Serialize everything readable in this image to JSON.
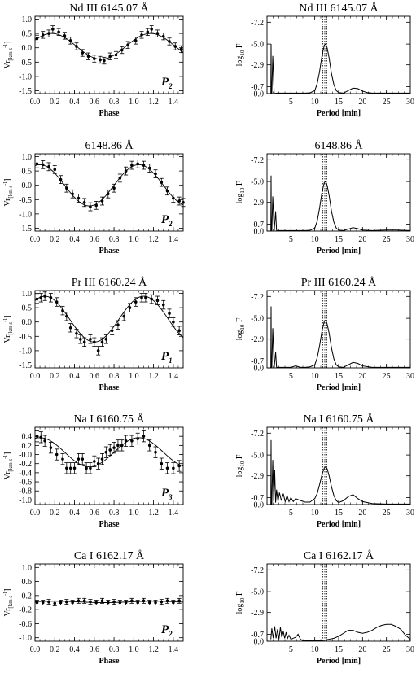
{
  "chart_data": [
    {
      "type": "scatter",
      "title": "Nd III 6145.07 Å",
      "xlabel": "Phase",
      "ylabel_main": "Vr",
      "ylabel_sub": "[km s",
      "ylabel_sup": "-1",
      "ylabel_end": "]",
      "xlim": [
        0,
        1.5
      ],
      "ylim": [
        -1.6,
        1.1
      ],
      "yticks": [
        "1.0",
        "0.5",
        "0.0",
        "-0.5",
        "-1.0",
        "-1.5"
      ],
      "ytick_values": [
        1.0,
        0.5,
        0.0,
        -0.5,
        -1.0,
        -1.5
      ],
      "xticks": [
        "0.0",
        "0.2",
        "0.4",
        "0.6",
        "0.8",
        "1.0",
        "1.2",
        "1.4"
      ],
      "xtick_values": [
        0,
        0.2,
        0.4,
        0.6,
        0.8,
        1.0,
        1.2,
        1.4
      ],
      "period_label": "P",
      "period_sub": "2",
      "fit": {
        "offset": 0.05,
        "amplitude": 0.45,
        "phase0": 0.17
      },
      "x": [
        0.02,
        0.08,
        0.14,
        0.18,
        0.24,
        0.3,
        0.36,
        0.42,
        0.48,
        0.54,
        0.6,
        0.66,
        0.7,
        0.76,
        0.82,
        0.88,
        0.94,
        1.02,
        1.08,
        1.14,
        1.18,
        1.24,
        1.3,
        1.36,
        1.42,
        1.48
      ],
      "y": [
        0.32,
        0.45,
        0.5,
        0.65,
        0.55,
        0.42,
        0.25,
        0.05,
        -0.18,
        -0.3,
        -0.38,
        -0.42,
        -0.45,
        -0.3,
        -0.25,
        -0.08,
        0.1,
        0.25,
        0.45,
        0.55,
        0.65,
        0.5,
        0.4,
        0.22,
        0.05,
        -0.05
      ],
      "err": 0.12
    },
    {
      "type": "line",
      "title": "Nd III 6145.07 Å",
      "xlabel": "Period [min]",
      "ylabel_main": "log",
      "ylabel_sub": "10",
      "ylabel_end": " F",
      "xlim": [
        0,
        30
      ],
      "ylim": [
        0,
        7.8
      ],
      "yticks": [
        "-7.2",
        "-5.0",
        "-2.9",
        "-0.7",
        "0.0"
      ],
      "ytick_values": [
        7.2,
        5.0,
        2.9,
        0.7,
        0.0
      ],
      "xticks": [
        "5",
        "10",
        "15",
        "20",
        "25",
        "30"
      ],
      "xtick_values": [
        5,
        10,
        15,
        20,
        25,
        30
      ],
      "period_markers": [
        11.7,
        12.1,
        12.5
      ],
      "x": [
        0.8,
        0.85,
        0.9,
        1.0,
        1.2,
        1.5,
        2.0,
        3.0,
        4.0,
        5.0,
        6.0,
        7.0,
        8.0,
        9.0,
        10.0,
        10.5,
        11.0,
        11.5,
        12.0,
        12.3,
        12.6,
        13.0,
        13.5,
        14.0,
        14.5,
        15.0,
        16.0,
        17.0,
        18.0,
        19.0,
        20.0,
        21.0,
        22.0,
        25.0,
        30.0
      ],
      "y": [
        0,
        5.0,
        0,
        0,
        3.8,
        0,
        0.05,
        0.05,
        0.05,
        0.05,
        0.05,
        0.05,
        0.05,
        0.08,
        0.3,
        1.0,
        2.2,
        3.8,
        4.9,
        5.0,
        4.6,
        3.6,
        2.0,
        0.9,
        0.3,
        0.1,
        0.05,
        0.3,
        0.55,
        0.5,
        0.25,
        0.1,
        0.05,
        0.05,
        0.05
      ]
    },
    {
      "type": "scatter",
      "title": "6148.86 Å",
      "xlabel": "Phase",
      "ylabel_main": "Vr",
      "ylabel_sub": "[km s",
      "ylabel_sup": "-1",
      "ylabel_end": "]",
      "xlim": [
        0,
        1.5
      ],
      "ylim": [
        -1.6,
        1.1
      ],
      "yticks": [
        "1.0",
        "0.5",
        "0.0",
        "-0.5",
        "-1.0",
        "-1.5"
      ],
      "ytick_values": [
        1.0,
        0.5,
        0.0,
        -0.5,
        -1.0,
        -1.5
      ],
      "xticks": [
        "0.0",
        "0.2",
        "0.4",
        "0.6",
        "0.8",
        "1.0",
        "1.2",
        "1.4"
      ],
      "xtick_values": [
        0,
        0.2,
        0.4,
        0.6,
        0.8,
        1.0,
        1.2,
        1.4
      ],
      "period_label": "P",
      "period_sub": "2",
      "fit": {
        "offset": 0.0,
        "amplitude": 0.72,
        "phase0": 0.05
      },
      "x": [
        0.02,
        0.08,
        0.14,
        0.2,
        0.26,
        0.32,
        0.38,
        0.44,
        0.5,
        0.56,
        0.62,
        0.68,
        0.74,
        0.8,
        0.86,
        0.92,
        0.98,
        1.04,
        1.1,
        1.16,
        1.22,
        1.28,
        1.34,
        1.4,
        1.46,
        1.5
      ],
      "y": [
        0.75,
        0.72,
        0.65,
        0.55,
        0.2,
        -0.1,
        -0.3,
        -0.45,
        -0.6,
        -0.75,
        -0.7,
        -0.55,
        -0.3,
        -0.1,
        0.25,
        0.5,
        0.7,
        0.75,
        0.7,
        0.6,
        0.4,
        0.1,
        -0.2,
        -0.45,
        -0.55,
        -0.6
      ],
      "err": 0.14
    },
    {
      "type": "line",
      "title": "6148.86 Å",
      "xlabel": "Period [min]",
      "ylabel_main": "log",
      "ylabel_sub": "10",
      "ylabel_end": " F",
      "xlim": [
        0,
        30
      ],
      "ylim": [
        0,
        7.8
      ],
      "yticks": [
        "-7.2",
        "-5.0",
        "-2.9",
        "-0.7",
        "0.0"
      ],
      "ytick_values": [
        7.2,
        5.0,
        2.9,
        0.7,
        0.0
      ],
      "xticks": [
        "5",
        "10",
        "15",
        "20",
        "25",
        "30"
      ],
      "xtick_values": [
        5,
        10,
        15,
        20,
        25,
        30
      ],
      "period_markers": [
        11.7,
        12.1,
        12.5
      ],
      "x": [
        0.8,
        0.85,
        0.9,
        1.0,
        1.2,
        1.5,
        1.8,
        2.0,
        3.0,
        4.0,
        5.0,
        6.0,
        7.0,
        8.0,
        9.0,
        10.0,
        10.5,
        11.0,
        11.5,
        12.0,
        12.3,
        12.6,
        13.0,
        13.5,
        14.0,
        14.5,
        15.0,
        16.0,
        17.0,
        18.0,
        19.0,
        20.0,
        22.0,
        25.0,
        27.0,
        30.0
      ],
      "y": [
        0,
        5.6,
        0,
        0,
        3.5,
        0,
        2.0,
        0.05,
        0.05,
        0.05,
        0.05,
        0.05,
        0.05,
        0.05,
        0.08,
        0.3,
        1.0,
        2.3,
        3.9,
        4.9,
        5.0,
        4.6,
        3.6,
        2.0,
        0.9,
        0.3,
        0.1,
        0.05,
        0.2,
        0.35,
        0.25,
        0.1,
        0.05,
        0.1,
        0.1,
        0.05
      ]
    },
    {
      "type": "scatter",
      "title": "Pr III 6160.24 Å",
      "xlabel": "Phase",
      "ylabel_main": "Vr",
      "ylabel_sub": "[km s",
      "ylabel_sup": "-1",
      "ylabel_end": "]",
      "xlim": [
        0,
        1.5
      ],
      "ylim": [
        -1.6,
        1.1
      ],
      "yticks": [
        "1.0",
        "0.5",
        "0.0",
        "-0.5",
        "-1.0",
        "-1.5"
      ],
      "ytick_values": [
        1.0,
        0.5,
        0.0,
        -0.5,
        -1.0,
        -1.5
      ],
      "xticks": [
        "0.0",
        "0.2",
        "0.4",
        "0.6",
        "0.8",
        "1.0",
        "1.2",
        "1.4"
      ],
      "xtick_values": [
        0,
        0.2,
        0.4,
        0.6,
        0.8,
        1.0,
        1.2,
        1.4
      ],
      "period_label": "P",
      "period_sub": "1",
      "fit": {
        "offset": 0.1,
        "amplitude": 0.8,
        "phase0": 0.1
      },
      "x": [
        0.02,
        0.06,
        0.1,
        0.16,
        0.22,
        0.28,
        0.32,
        0.36,
        0.42,
        0.46,
        0.5,
        0.56,
        0.6,
        0.64,
        0.68,
        0.72,
        0.78,
        0.84,
        0.9,
        0.96,
        1.02,
        1.08,
        1.12,
        1.18,
        1.24,
        1.3,
        1.36,
        1.4,
        1.46
      ],
      "y": [
        0.8,
        0.85,
        0.9,
        0.85,
        0.7,
        0.4,
        0.2,
        -0.2,
        -0.4,
        -0.6,
        -0.7,
        -0.6,
        -0.7,
        -1.0,
        -0.7,
        -0.6,
        -0.3,
        -0.1,
        0.2,
        0.5,
        0.7,
        0.85,
        0.85,
        0.8,
        0.75,
        0.6,
        0.3,
        0.0,
        -0.3
      ],
      "err": 0.15
    },
    {
      "type": "line",
      "title": "Pr III 6160.24 Å",
      "xlabel": "Period [min]",
      "ylabel_main": "log",
      "ylabel_sub": "10",
      "ylabel_end": " F",
      "xlim": [
        0,
        30
      ],
      "ylim": [
        0,
        7.8
      ],
      "yticks": [
        "-7.2",
        "-5.0",
        "-2.9",
        "-0.7",
        "0.0"
      ],
      "ytick_values": [
        7.2,
        5.0,
        2.9,
        0.7,
        0.0
      ],
      "xticks": [
        "5",
        "10",
        "15",
        "20",
        "25",
        "30"
      ],
      "xtick_values": [
        5,
        10,
        15,
        20,
        25,
        30
      ],
      "period_markers": [
        11.7,
        12.1,
        12.5
      ],
      "x": [
        0.8,
        0.85,
        0.9,
        1.0,
        1.2,
        1.5,
        1.8,
        2.0,
        3.0,
        4.0,
        5.0,
        6.0,
        7.0,
        8.0,
        9.0,
        10.0,
        10.5,
        11.0,
        11.5,
        12.0,
        12.3,
        12.6,
        13.0,
        13.5,
        14.0,
        14.5,
        15.0,
        16.0,
        17.0,
        18.0,
        19.0,
        20.0,
        22.0,
        25.0,
        30.0
      ],
      "y": [
        0,
        6.2,
        0,
        0,
        4.0,
        0,
        1.6,
        0.05,
        0.05,
        0.05,
        0.05,
        0.2,
        0.05,
        0.05,
        0.1,
        0.3,
        1.0,
        2.2,
        3.7,
        4.7,
        4.8,
        4.4,
        3.5,
        2.0,
        0.9,
        0.3,
        0.1,
        0.05,
        0.3,
        0.55,
        0.45,
        0.2,
        0.05,
        0.05,
        0.05
      ]
    },
    {
      "type": "scatter",
      "title": "Na I 6160.75 Å",
      "xlabel": "Phase",
      "ylabel_main": "Vr",
      "ylabel_sub": "[km s",
      "ylabel_sup": "-1",
      "ylabel_end": "]",
      "xlim": [
        0,
        1.5
      ],
      "ylim": [
        -1.1,
        0.6
      ],
      "yticks": [
        "0.4",
        "0.2",
        "-0.0",
        "-0.2",
        "-0.4",
        "-0.6",
        "-0.8",
        "-1.0"
      ],
      "ytick_values": [
        0.4,
        0.2,
        0.0,
        -0.2,
        -0.4,
        -0.6,
        -0.8,
        -1.0
      ],
      "xticks": [
        "0.0",
        "0.2",
        "0.4",
        "0.6",
        "0.8",
        "1.0",
        "1.2",
        "1.4"
      ],
      "xtick_values": [
        0,
        0.2,
        0.4,
        0.6,
        0.8,
        1.0,
        1.2,
        1.4
      ],
      "period_label": "P",
      "period_sub": "3",
      "fit": {
        "offset": 0.05,
        "amplitude": 0.32,
        "phase0": 0.05
      },
      "x": [
        0.02,
        0.06,
        0.1,
        0.16,
        0.22,
        0.28,
        0.32,
        0.36,
        0.4,
        0.44,
        0.48,
        0.52,
        0.56,
        0.6,
        0.64,
        0.68,
        0.72,
        0.76,
        0.8,
        0.84,
        0.88,
        0.92,
        0.98,
        1.04,
        1.1,
        1.16,
        1.22,
        1.28,
        1.34,
        1.4,
        1.46
      ],
      "y": [
        0.4,
        0.38,
        0.3,
        0.15,
        0.0,
        -0.1,
        -0.3,
        -0.3,
        -0.3,
        -0.1,
        -0.1,
        -0.3,
        -0.3,
        -0.15,
        -0.2,
        -0.1,
        0.05,
        0.1,
        0.15,
        0.2,
        0.2,
        0.3,
        0.3,
        0.35,
        0.4,
        0.2,
        0.05,
        -0.2,
        -0.3,
        -0.3,
        -0.25
      ],
      "err": 0.12
    },
    {
      "type": "line",
      "title": "Na I 6160.75 Å",
      "xlabel": "Period [min]",
      "ylabel_main": "log",
      "ylabel_sub": "10",
      "ylabel_end": " F",
      "xlim": [
        0,
        30
      ],
      "ylim": [
        0,
        7.8
      ],
      "yticks": [
        "-7.2",
        "-5.0",
        "-2.9",
        "-0.7",
        "0.0"
      ],
      "ytick_values": [
        7.2,
        5.0,
        2.9,
        0.7,
        0.0
      ],
      "xticks": [
        "5",
        "10",
        "15",
        "20",
        "25",
        "30"
      ],
      "xtick_values": [
        5,
        10,
        15,
        20,
        25,
        30
      ],
      "period_markers": [
        11.7,
        12.1,
        12.5
      ],
      "x": [
        0.8,
        0.85,
        0.9,
        1.0,
        1.2,
        1.4,
        1.6,
        1.8,
        2.0,
        2.3,
        2.6,
        3.0,
        3.4,
        3.8,
        4.2,
        4.6,
        5.0,
        5.5,
        6.0,
        6.5,
        7.0,
        8.0,
        9.0,
        10.0,
        10.5,
        11.0,
        11.5,
        12.0,
        12.3,
        12.6,
        13.0,
        13.5,
        14.0,
        14.5,
        15.0,
        16.0,
        17.0,
        18.0,
        19.0,
        20.0,
        22.0,
        25.0,
        30.0
      ],
      "y": [
        0,
        6.5,
        0,
        0,
        4.5,
        0.3,
        3.5,
        0.2,
        1.5,
        0.3,
        1.2,
        0.4,
        1.1,
        0.3,
        0.9,
        0.3,
        0.7,
        0.3,
        0.6,
        0.5,
        0.4,
        0.25,
        0.25,
        0.6,
        1.1,
        2.0,
        3.0,
        3.7,
        3.8,
        3.6,
        2.9,
        1.8,
        0.9,
        0.4,
        0.2,
        0.4,
        0.8,
        1.0,
        0.6,
        0.3,
        0.1,
        0.05,
        0.05
      ]
    },
    {
      "type": "scatter",
      "title": "Ca I 6162.17 Å",
      "xlabel": "Phase",
      "ylabel_main": "Vr",
      "ylabel_sub": "[km s",
      "ylabel_sup": "-1",
      "ylabel_end": "]",
      "xlim": [
        0,
        1.5
      ],
      "ylim": [
        -1.1,
        1.1
      ],
      "yticks": [
        "1.0",
        "0.6",
        "0.2",
        "-0.2",
        "-0.6",
        "-1.0"
      ],
      "ytick_values": [
        1.0,
        0.6,
        0.2,
        -0.2,
        -0.6,
        -1.0
      ],
      "xticks": [
        "0.0",
        "0.2",
        "0.4",
        "0.6",
        "0.8",
        "1.0",
        "1.2",
        "1.4"
      ],
      "xtick_values": [
        0,
        0.2,
        0.4,
        0.6,
        0.8,
        1.0,
        1.2,
        1.4
      ],
      "period_label": "P",
      "period_sub": "2",
      "fit": {
        "offset": 0.02,
        "amplitude": 0.02,
        "phase0": 0.2
      },
      "x": [
        0.02,
        0.08,
        0.14,
        0.2,
        0.26,
        0.32,
        0.38,
        0.44,
        0.5,
        0.56,
        0.62,
        0.68,
        0.74,
        0.8,
        0.86,
        0.92,
        0.98,
        1.04,
        1.1,
        1.16,
        1.22,
        1.28,
        1.34,
        1.4,
        1.46
      ],
      "y": [
        0.0,
        0.0,
        0.02,
        -0.02,
        0.0,
        0.02,
        0.0,
        0.05,
        0.05,
        0.02,
        0.0,
        0.05,
        0.0,
        0.02,
        0.0,
        0.0,
        0.05,
        0.0,
        0.05,
        0.0,
        0.0,
        0.02,
        0.05,
        0.0,
        0.05
      ],
      "err": 0.07
    },
    {
      "type": "line",
      "title": "Ca I 6162.17 Å",
      "xlabel": "Period [min]",
      "ylabel_main": "log",
      "ylabel_sub": "10",
      "ylabel_end": " F",
      "xlim": [
        0,
        30
      ],
      "ylim": [
        0,
        7.8
      ],
      "yticks": [
        "-7.2",
        "-5.0",
        "-2.9",
        "-0.7",
        "0.0"
      ],
      "ytick_values": [
        7.2,
        5.0,
        2.9,
        0.7,
        0.0
      ],
      "xticks": [
        "5",
        "10",
        "15",
        "20",
        "25",
        "30"
      ],
      "xtick_values": [
        5,
        10,
        15,
        20,
        25,
        30
      ],
      "period_markers": [
        11.7,
        12.1,
        12.5
      ],
      "x": [
        0.8,
        1.0,
        1.3,
        1.6,
        1.9,
        2.2,
        2.5,
        2.8,
        3.1,
        3.4,
        3.7,
        4.0,
        4.3,
        4.6,
        5.0,
        5.5,
        6.0,
        6.5,
        7.0,
        7.5,
        8.0,
        9.0,
        10.0,
        11.0,
        12.0,
        13.0,
        14.0,
        15.0,
        16.0,
        17.0,
        18.0,
        19.0,
        20.0,
        21.0,
        22.0,
        23.0,
        24.0,
        25.0,
        26.0,
        27.0,
        28.0,
        29.0,
        30.0
      ],
      "y": [
        0.2,
        1.3,
        0.3,
        1.5,
        0.3,
        1.2,
        0.2,
        1.4,
        0.4,
        1.0,
        0.3,
        0.9,
        0.3,
        0.6,
        0.2,
        0.3,
        0.4,
        0.7,
        0.2,
        0.05,
        0.05,
        0.05,
        0.05,
        0.05,
        0.1,
        0.2,
        0.3,
        0.5,
        0.8,
        1.1,
        1.1,
        0.9,
        0.8,
        0.9,
        1.1,
        1.4,
        1.6,
        1.7,
        1.7,
        1.5,
        1.2,
        0.6,
        0.2
      ]
    }
  ]
}
